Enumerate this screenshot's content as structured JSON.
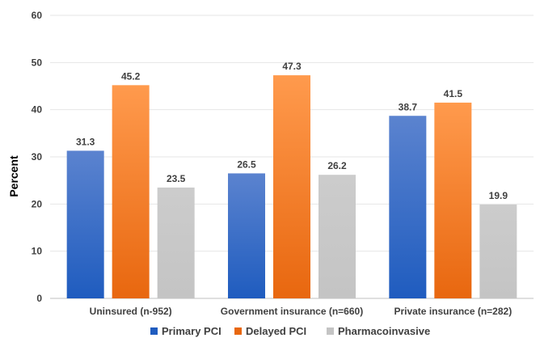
{
  "chart_data": {
    "type": "bar",
    "title": "",
    "xlabel": "",
    "ylabel": "Percent",
    "ylim": [
      0,
      60
    ],
    "yticks": [
      0,
      10,
      20,
      30,
      40,
      50,
      60
    ],
    "grid": true,
    "legend_position": "bottom",
    "categories": [
      "Uninsured (n-952)",
      "Government insurance (n=660)",
      "Private insurance (n=282)"
    ],
    "series": [
      {
        "name": "Primary PCI",
        "values": [
          31.3,
          26.5,
          38.7
        ],
        "color_top": "#5b83cf",
        "color_bottom": "#1f5cbf"
      },
      {
        "name": "Delayed PCI",
        "values": [
          45.2,
          47.3,
          41.5
        ],
        "color_top": "#ff9a4d",
        "color_bottom": "#e8670f"
      },
      {
        "name": "Pharmacoinvasive",
        "values": [
          23.5,
          26.2,
          19.9
        ],
        "color_top": "#cccccc",
        "color_bottom": "#c4c4c4"
      }
    ]
  }
}
